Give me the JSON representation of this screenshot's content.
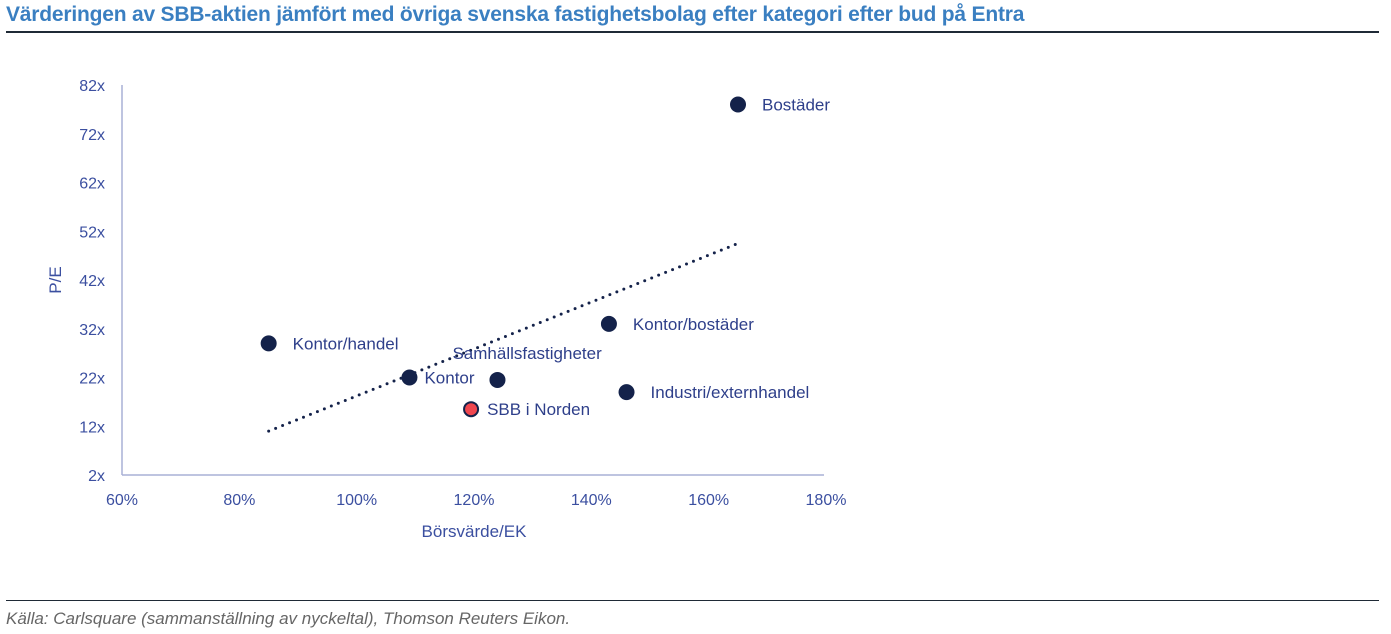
{
  "header": {
    "title": "Värderingen av SBB-aktien jämfört med övriga svenska fastighetsbolag efter kategori efter bud på Entra"
  },
  "footer": {
    "source": "Källa: Carlsquare (sammanställning av nyckeltal), Thomson Reuters Eikon."
  },
  "colors": {
    "title": "#3a7fc1",
    "axis_text": "#3b4fa0",
    "axis_line": "#a9b0d6",
    "point": "#14224a",
    "highlight_point": "#f0474f",
    "trendline": "#14224a"
  },
  "chart_data": {
    "type": "scatter",
    "title": "Värderingen av SBB-aktien jämfört med övriga svenska fastighetsbolag efter kategori efter bud på Entra",
    "xlabel": "Börsvärde/EK",
    "ylabel": "P/E",
    "xlim": [
      60,
      180
    ],
    "ylim": [
      2,
      82
    ],
    "grid": false,
    "x_ticks": [
      60,
      80,
      100,
      120,
      140,
      160,
      180
    ],
    "x_tick_labels": [
      "60%",
      "80%",
      "100%",
      "120%",
      "140%",
      "160%",
      "180%"
    ],
    "y_ticks": [
      2,
      12,
      22,
      32,
      42,
      52,
      62,
      72,
      82
    ],
    "y_tick_labels": [
      "2x",
      "12x",
      "22x",
      "32x",
      "42x",
      "52x",
      "62x",
      "72x",
      "82x"
    ],
    "points": [
      {
        "label": "Bostäder",
        "x": 165,
        "y": 78,
        "highlight": false,
        "label_pos": "right"
      },
      {
        "label": "Kontor/handel",
        "x": 85,
        "y": 29,
        "highlight": false,
        "label_pos": "right"
      },
      {
        "label": "Kontor",
        "x": 109,
        "y": 22,
        "highlight": false,
        "label_pos": "right"
      },
      {
        "label": "Samhällsfastigheter",
        "x": 124,
        "y": 21.5,
        "highlight": false,
        "label_pos": "above"
      },
      {
        "label": "SBB i Norden",
        "x": 119.5,
        "y": 15.5,
        "highlight": true,
        "label_pos": "right"
      },
      {
        "label": "Kontor/bostäder",
        "x": 143,
        "y": 33,
        "highlight": false,
        "label_pos": "right"
      },
      {
        "label": "Industri/externhandel",
        "x": 146,
        "y": 19,
        "highlight": false,
        "label_pos": "right"
      }
    ],
    "trendline": {
      "style": "dotted",
      "x": [
        85,
        165
      ],
      "y": [
        11,
        49.5
      ]
    }
  }
}
